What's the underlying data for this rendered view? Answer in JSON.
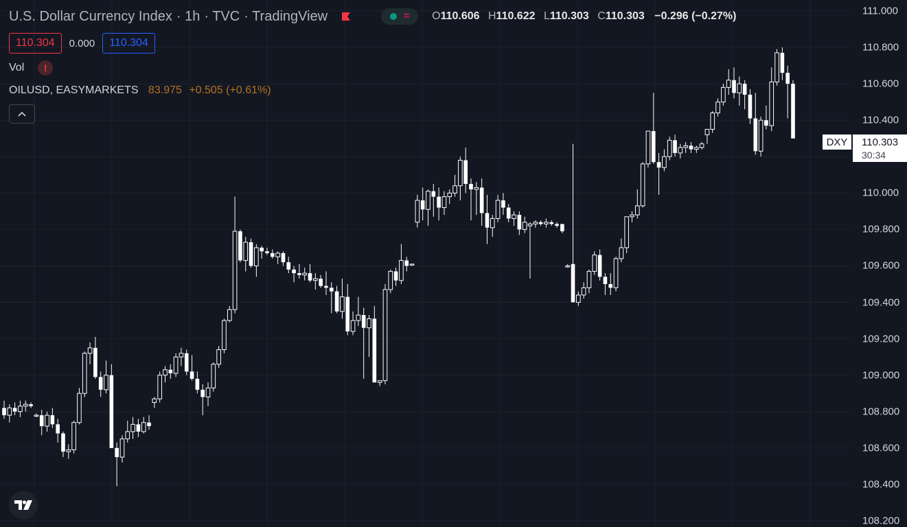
{
  "header": {
    "symbol_name": "U.S. Dollar Currency Index",
    "interval": "1h",
    "exchange": "TVC",
    "source": "TradingView",
    "ohlc": {
      "o_label": "O",
      "o": "110.606",
      "h_label": "H",
      "h": "110.622",
      "l_label": "L",
      "l": "110.303",
      "c_label": "C",
      "c": "110.303",
      "change": "−0.296 (−0.27%)"
    }
  },
  "price_boxes": {
    "bid": "110.304",
    "spread": "0.000",
    "ask": "110.304"
  },
  "indicators": {
    "vol_label": "Vol",
    "warning_glyph": "!",
    "compare_symbol": "OILUSD, EASYMARKETS",
    "compare_value": "83.975",
    "compare_change": "+0.505 (+0.61%)"
  },
  "price_scale": {
    "ticks": [
      "111.000",
      "110.800",
      "110.600",
      "110.400",
      "110.200",
      "110.000",
      "109.800",
      "109.600",
      "109.400",
      "109.200",
      "109.000",
      "108.800",
      "108.600",
      "108.400",
      "108.200"
    ],
    "symbol_tag": "DXY",
    "last_price": "110.303",
    "countdown": "30:34"
  },
  "icons": {
    "collapse": "chevron-up-icon",
    "logo": "tradingview-logo"
  },
  "colors": {
    "background": "#131722",
    "candle": "#ffffff",
    "down_accent": "#f23645",
    "up_accent": "#089981",
    "ask": "#2962ff",
    "compare": "#b5731f"
  },
  "chart_data": {
    "type": "candlestick",
    "ylim": [
      108.17,
      111.06
    ],
    "grid": true,
    "series": [
      {
        "name": "DXY",
        "values": [
          [
            108.82,
            108.86,
            108.76,
            108.78
          ],
          [
            108.78,
            108.84,
            108.74,
            108.82
          ],
          [
            108.82,
            108.85,
            108.78,
            108.8
          ],
          [
            108.8,
            108.86,
            108.77,
            108.83
          ],
          [
            108.83,
            108.86,
            108.8,
            108.84
          ],
          [
            108.84,
            108.85,
            108.82,
            108.83
          ],
          [
            108.78,
            108.79,
            108.77,
            108.78
          ],
          [
            108.78,
            108.81,
            108.67,
            108.72
          ],
          [
            108.72,
            108.8,
            108.69,
            108.78
          ],
          [
            108.78,
            108.82,
            108.71,
            108.73
          ],
          [
            108.73,
            108.76,
            108.63,
            108.68
          ],
          [
            108.68,
            108.69,
            108.55,
            108.58
          ],
          [
            108.58,
            108.62,
            108.54,
            108.59
          ],
          [
            108.59,
            108.75,
            108.57,
            108.74
          ],
          [
            108.74,
            108.93,
            108.73,
            108.9
          ],
          [
            108.9,
            109.13,
            108.88,
            109.12
          ],
          [
            109.12,
            109.18,
            109.06,
            109.15
          ],
          [
            109.15,
            109.21,
            108.98,
            108.99
          ],
          [
            108.99,
            109.02,
            108.88,
            108.92
          ],
          [
            108.92,
            109.08,
            108.9,
            109.0
          ],
          [
            109.0,
            109.06,
            108.6,
            108.6
          ],
          [
            108.6,
            108.63,
            108.39,
            108.55
          ],
          [
            108.55,
            108.67,
            108.52,
            108.65
          ],
          [
            108.65,
            108.75,
            108.63,
            108.69
          ],
          [
            108.69,
            108.77,
            108.65,
            108.73
          ],
          [
            108.73,
            108.76,
            108.66,
            108.69
          ],
          [
            108.69,
            108.77,
            108.68,
            108.74
          ],
          [
            108.74,
            108.78,
            108.7,
            108.72
          ],
          [
            108.85,
            108.88,
            108.82,
            108.87
          ],
          [
            108.87,
            109.02,
            108.85,
            109.0
          ],
          [
            109.0,
            109.05,
            108.96,
            109.03
          ],
          [
            109.03,
            109.06,
            108.98,
            109.01
          ],
          [
            109.01,
            109.12,
            108.99,
            109.1
          ],
          [
            109.1,
            109.15,
            109.05,
            109.12
          ],
          [
            109.12,
            109.14,
            109.0,
            109.02
          ],
          [
            109.02,
            109.11,
            108.97,
            108.98
          ],
          [
            108.98,
            109.02,
            108.9,
            108.92
          ],
          [
            108.92,
            108.95,
            108.78,
            108.88
          ],
          [
            108.88,
            108.96,
            108.83,
            108.93
          ],
          [
            108.93,
            109.07,
            108.91,
            109.06
          ],
          [
            109.06,
            109.16,
            109.04,
            109.14
          ],
          [
            109.14,
            109.31,
            109.12,
            109.3
          ],
          [
            109.3,
            109.38,
            109.29,
            109.36
          ],
          [
            109.36,
            109.98,
            109.34,
            109.79
          ],
          [
            109.79,
            109.8,
            109.62,
            109.63
          ],
          [
            109.63,
            109.76,
            109.57,
            109.73
          ],
          [
            109.73,
            109.75,
            109.59,
            109.6
          ],
          [
            109.6,
            109.72,
            109.54,
            109.7
          ],
          [
            109.7,
            109.71,
            109.64,
            109.68
          ],
          [
            109.68,
            109.7,
            109.66,
            109.67
          ],
          [
            109.67,
            109.69,
            109.64,
            109.65
          ],
          [
            109.65,
            109.68,
            109.61,
            109.67
          ],
          [
            109.67,
            109.68,
            109.6,
            109.62
          ],
          [
            109.62,
            109.65,
            109.56,
            109.58
          ],
          [
            109.58,
            109.6,
            109.51,
            109.56
          ],
          [
            109.56,
            109.61,
            109.53,
            109.55
          ],
          [
            109.55,
            109.59,
            109.52,
            109.56
          ],
          [
            109.56,
            109.61,
            109.51,
            109.52
          ],
          [
            109.52,
            109.56,
            109.47,
            109.53
          ],
          [
            109.53,
            109.55,
            109.48,
            109.49
          ],
          [
            109.49,
            109.57,
            109.44,
            109.48
          ],
          [
            109.48,
            109.51,
            109.34,
            109.46
          ],
          [
            109.46,
            109.49,
            109.34,
            109.35
          ],
          [
            109.35,
            109.53,
            109.31,
            109.43
          ],
          [
            109.43,
            109.5,
            109.22,
            109.24
          ],
          [
            109.24,
            109.35,
            109.22,
            109.3
          ],
          [
            109.3,
            109.43,
            109.27,
            109.33
          ],
          [
            109.33,
            109.37,
            108.98,
            109.26
          ],
          [
            109.26,
            109.33,
            109.1,
            109.31
          ],
          [
            109.31,
            109.38,
            108.96,
            108.96
          ],
          [
            108.96,
            108.97,
            108.94,
            108.97
          ],
          [
            108.97,
            109.5,
            108.95,
            109.47
          ],
          [
            109.47,
            109.58,
            109.45,
            109.57
          ],
          [
            109.57,
            109.59,
            109.49,
            109.52
          ],
          [
            109.52,
            109.72,
            109.5,
            109.63
          ],
          [
            109.63,
            109.65,
            109.57,
            109.6
          ],
          [
            109.61,
            109.61,
            109.6,
            109.61
          ],
          [
            109.84,
            109.99,
            109.81,
            109.96
          ],
          [
            109.96,
            110.03,
            109.85,
            109.91
          ],
          [
            109.91,
            110.02,
            109.82,
            110.01
          ],
          [
            110.01,
            110.05,
            109.87,
            109.98
          ],
          [
            109.98,
            110.03,
            109.85,
            109.92
          ],
          [
            109.92,
            110.01,
            109.88,
            109.98
          ],
          [
            109.98,
            110.02,
            109.94,
            110.0
          ],
          [
            110.0,
            110.1,
            109.98,
            110.04
          ],
          [
            110.04,
            110.2,
            109.96,
            110.18
          ],
          [
            110.18,
            110.25,
            110.0,
            110.05
          ],
          [
            110.05,
            110.08,
            109.85,
            110.02
          ],
          [
            110.02,
            110.06,
            109.88,
            110.03
          ],
          [
            110.03,
            110.08,
            109.82,
            109.89
          ],
          [
            109.89,
            109.99,
            109.72,
            109.81
          ],
          [
            109.81,
            109.88,
            109.76,
            109.86
          ],
          [
            109.86,
            109.99,
            109.84,
            109.96
          ],
          [
            109.96,
            110.0,
            109.88,
            109.92
          ],
          [
            109.92,
            109.94,
            109.84,
            109.86
          ],
          [
            109.86,
            109.9,
            109.82,
            109.88
          ],
          [
            109.88,
            109.9,
            109.77,
            109.8
          ],
          [
            109.8,
            109.87,
            109.78,
            109.84
          ],
          [
            109.82,
            109.84,
            109.53,
            109.83
          ],
          [
            109.83,
            109.85,
            109.81,
            109.84
          ],
          [
            109.84,
            109.85,
            109.82,
            109.83
          ],
          [
            109.83,
            109.86,
            109.81,
            109.84
          ],
          [
            109.84,
            109.85,
            109.82,
            109.83
          ],
          [
            109.83,
            109.84,
            109.81,
            109.82
          ],
          [
            109.83,
            109.83,
            109.78,
            109.79
          ],
          [
            109.6,
            109.61,
            109.59,
            109.6
          ],
          [
            109.61,
            110.27,
            109.4,
            109.4
          ],
          [
            109.4,
            109.46,
            109.38,
            109.44
          ],
          [
            109.44,
            109.51,
            109.42,
            109.48
          ],
          [
            109.48,
            109.58,
            109.45,
            109.57
          ],
          [
            109.57,
            109.68,
            109.55,
            109.66
          ],
          [
            109.66,
            109.69,
            109.52,
            109.54
          ],
          [
            109.54,
            109.56,
            109.44,
            109.5
          ],
          [
            109.5,
            109.56,
            109.44,
            109.48
          ],
          [
            109.48,
            109.65,
            109.46,
            109.64
          ],
          [
            109.64,
            109.75,
            109.62,
            109.7
          ],
          [
            109.7,
            109.85,
            109.67,
            109.87
          ],
          [
            109.87,
            109.9,
            109.84,
            109.88
          ],
          [
            109.88,
            110.02,
            109.86,
            109.93
          ],
          [
            109.93,
            110.17,
            109.92,
            110.16
          ],
          [
            110.16,
            110.34,
            110.14,
            110.34
          ],
          [
            110.34,
            110.55,
            110.16,
            110.17
          ],
          [
            110.17,
            110.22,
            109.99,
            110.14
          ],
          [
            110.14,
            110.24,
            110.12,
            110.2
          ],
          [
            110.2,
            110.31,
            110.18,
            110.29
          ],
          [
            110.29,
            110.32,
            110.2,
            110.22
          ],
          [
            110.22,
            110.27,
            110.19,
            110.25
          ],
          [
            110.25,
            110.28,
            110.22,
            110.26
          ],
          [
            110.26,
            110.28,
            110.22,
            110.24
          ],
          [
            110.24,
            110.26,
            110.22,
            110.25
          ],
          [
            110.25,
            110.28,
            110.24,
            110.27
          ],
          [
            110.32,
            110.35,
            110.27,
            110.35
          ],
          [
            110.35,
            110.45,
            110.33,
            110.44
          ],
          [
            110.44,
            110.52,
            110.42,
            110.5
          ],
          [
            110.5,
            110.6,
            110.48,
            110.58
          ],
          [
            110.58,
            110.68,
            110.54,
            110.62
          ],
          [
            110.62,
            110.69,
            110.52,
            110.55
          ],
          [
            110.55,
            110.64,
            110.48,
            110.6
          ],
          [
            110.6,
            110.62,
            110.46,
            110.54
          ],
          [
            110.54,
            110.57,
            110.38,
            110.41
          ],
          [
            110.41,
            110.55,
            110.21,
            110.23
          ],
          [
            110.23,
            110.42,
            110.2,
            110.4
          ],
          [
            110.4,
            110.48,
            110.35,
            110.37
          ],
          [
            110.37,
            110.69,
            110.34,
            110.61
          ],
          [
            110.61,
            110.79,
            110.59,
            110.77
          ],
          [
            110.77,
            110.8,
            110.62,
            110.66
          ],
          [
            110.66,
            110.7,
            110.41,
            110.6
          ],
          [
            110.6,
            110.62,
            110.3,
            110.3
          ]
        ]
      }
    ]
  }
}
